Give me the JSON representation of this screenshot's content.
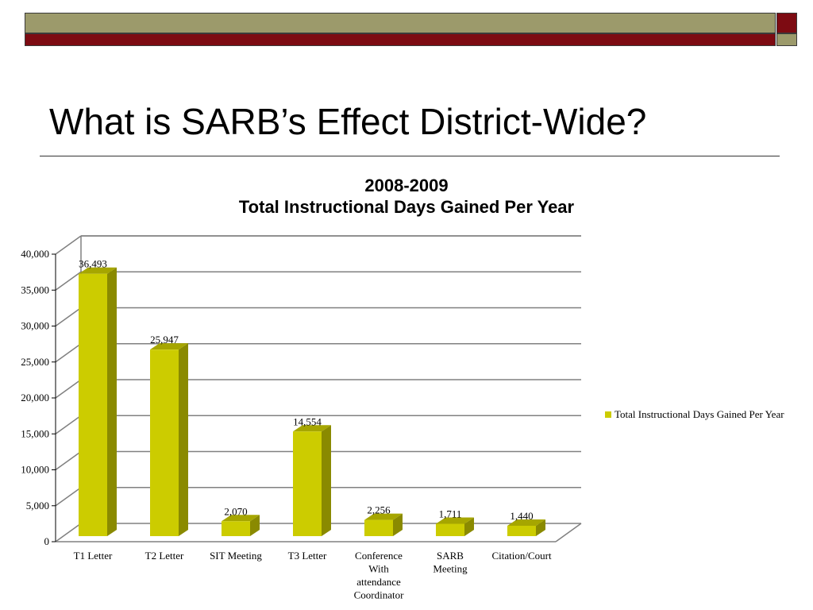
{
  "slide": {
    "title": "What is SARB’s Effect District-Wide?"
  },
  "colors": {
    "band_olive": "#9c9a6b",
    "band_maroon": "#7d0b12",
    "bar_front": "#cccc00",
    "bar_side": "#8a8a00",
    "bar_top": "#a6a600",
    "grid": "#808080"
  },
  "chart_data": {
    "type": "bar",
    "title_lines": [
      "2008-2009",
      "Total Instructional Days Gained Per Year"
    ],
    "categories": [
      [
        "T1 Letter"
      ],
      [
        "T2 Letter"
      ],
      [
        "SIT Meeting"
      ],
      [
        "T3 Letter"
      ],
      [
        "Conference",
        "With",
        "attendance",
        "Coordinator"
      ],
      [
        "SARB",
        "Meeting"
      ],
      [
        "Citation/Court"
      ]
    ],
    "series": [
      {
        "name": "Total Instructional Days Gained Per Year",
        "values": [
          36493,
          25947,
          2070,
          14554,
          2256,
          1711,
          1440
        ],
        "labels": [
          "36,493",
          "25,947",
          "2,070",
          "14,554",
          "2,256",
          "1,711",
          "1,440"
        ]
      }
    ],
    "yticks": [
      "0",
      "5,000",
      "10,000",
      "15,000",
      "20,000",
      "25,000",
      "30,000",
      "35,000",
      "40,000"
    ],
    "ylim": [
      0,
      40000
    ],
    "ystep": 5000,
    "grid": true,
    "legend_position": "right",
    "style": "3d"
  }
}
